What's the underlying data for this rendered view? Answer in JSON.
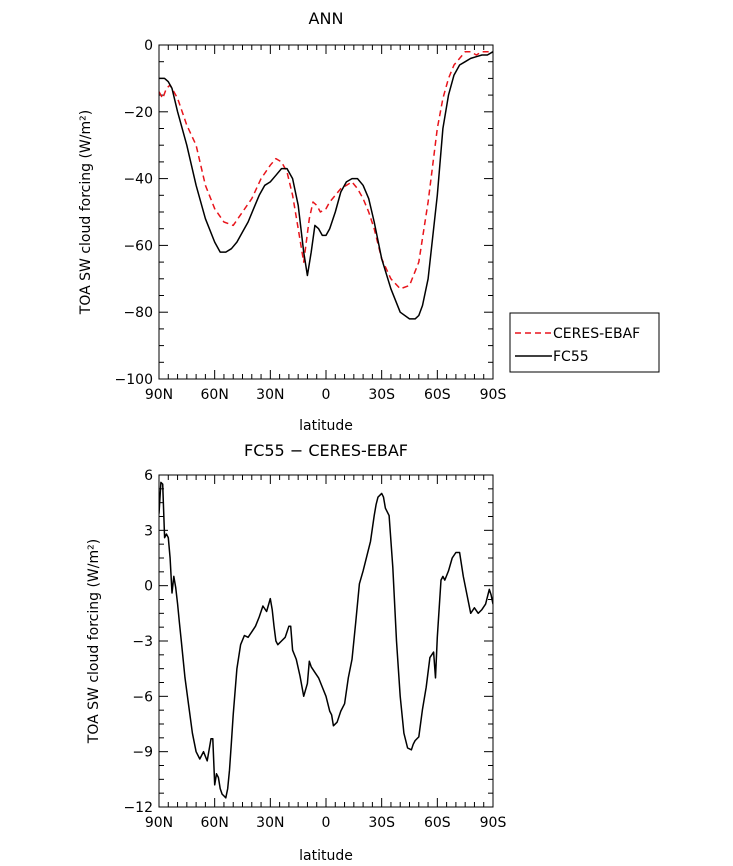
{
  "chart_data": [
    {
      "type": "line",
      "title": "ANN",
      "xlabel": "latitude",
      "ylabel": "TOA SW cloud forcing (W/m²)",
      "xlim": [
        90,
        -90
      ],
      "ylim": [
        -100,
        0
      ],
      "x_ticks": [
        {
          "v": 90,
          "label": "90N"
        },
        {
          "v": 60,
          "label": "60N"
        },
        {
          "v": 30,
          "label": "30N"
        },
        {
          "v": 0,
          "label": "0"
        },
        {
          "v": -30,
          "label": "30S"
        },
        {
          "v": -60,
          "label": "60S"
        },
        {
          "v": -90,
          "label": "90S"
        }
      ],
      "y_ticks": [
        {
          "v": 0,
          "label": "0"
        },
        {
          "v": -20,
          "label": "−20"
        },
        {
          "v": -40,
          "label": "−40"
        },
        {
          "v": -60,
          "label": "−60"
        },
        {
          "v": -80,
          "label": "−80"
        },
        {
          "v": -100,
          "label": "−100"
        }
      ],
      "legend": {
        "placement": "right"
      },
      "series": [
        {
          "name": "CERES-EBAF",
          "color": "#e8141b",
          "style": "dashed",
          "x": [
            90,
            88,
            86,
            84,
            80,
            75,
            70,
            65,
            60,
            55,
            50,
            45,
            40,
            35,
            30,
            27,
            24,
            21,
            18,
            15,
            12,
            9,
            7,
            5,
            3,
            0,
            -2,
            -5,
            -8,
            -11,
            -14,
            -17,
            -20,
            -23,
            -26,
            -30,
            -35,
            -40,
            -45,
            -50,
            -55,
            -60,
            -63,
            -66,
            -69,
            -72,
            -75,
            -78,
            -81,
            -84,
            -87,
            -90
          ],
          "y": [
            -14,
            -16,
            -13,
            -12,
            -16,
            -24,
            -30,
            -42,
            -49,
            -53,
            -54,
            -50,
            -46,
            -40,
            -36,
            -34,
            -35,
            -38,
            -45,
            -55,
            -65,
            -52,
            -47,
            -48,
            -50,
            -49,
            -47,
            -45,
            -43,
            -42,
            -41,
            -43,
            -46,
            -50,
            -55,
            -64,
            -70,
            -73,
            -72,
            -65,
            -47,
            -25,
            -16,
            -10,
            -6,
            -4,
            -2,
            -2,
            -3,
            -2,
            -2,
            -2
          ]
        },
        {
          "name": "FC55",
          "color": "#000000",
          "style": "solid",
          "x": [
            90,
            87,
            85,
            83,
            80,
            75,
            70,
            65,
            60,
            57,
            54,
            51,
            48,
            45,
            42,
            39,
            36,
            33,
            30,
            27,
            24,
            21,
            18,
            15,
            12,
            10,
            8,
            6,
            4,
            2,
            0,
            -2,
            -5,
            -8,
            -11,
            -14,
            -17,
            -20,
            -23,
            -26,
            -30,
            -35,
            -40,
            -45,
            -48,
            -50,
            -52,
            -55,
            -60,
            -63,
            -66,
            -69,
            -72,
            -75,
            -78,
            -81,
            -84,
            -87,
            -90
          ],
          "y": [
            -10,
            -10,
            -11,
            -13,
            -20,
            -30,
            -42,
            -52,
            -59,
            -62,
            -62,
            -61,
            -59,
            -56,
            -53,
            -49,
            -45,
            -42,
            -41,
            -39,
            -37,
            -37,
            -40,
            -48,
            -62,
            -69,
            -62,
            -54,
            -55,
            -57,
            -57,
            -55,
            -50,
            -44,
            -41,
            -40,
            -40,
            -42,
            -46,
            -53,
            -64,
            -73,
            -80,
            -82,
            -82,
            -81,
            -78,
            -70,
            -45,
            -25,
            -15,
            -9,
            -6,
            -5,
            -4,
            -3.5,
            -3,
            -3,
            -2
          ]
        }
      ]
    },
    {
      "type": "line",
      "title": "FC55 − CERES-EBAF",
      "xlabel": "latitude",
      "ylabel": "TOA SW cloud forcing (W/m²)",
      "xlim": [
        90,
        -90
      ],
      "ylim": [
        -12,
        6
      ],
      "x_ticks": [
        {
          "v": 90,
          "label": "90N"
        },
        {
          "v": 60,
          "label": "60N"
        },
        {
          "v": 30,
          "label": "30N"
        },
        {
          "v": 0,
          "label": "0"
        },
        {
          "v": -30,
          "label": "30S"
        },
        {
          "v": -60,
          "label": "60S"
        },
        {
          "v": -90,
          "label": "90S"
        }
      ],
      "y_ticks": [
        {
          "v": 6,
          "label": "6"
        },
        {
          "v": 3,
          "label": "3"
        },
        {
          "v": 0,
          "label": "0"
        },
        {
          "v": -3,
          "label": "−3"
        },
        {
          "v": -6,
          "label": "−6"
        },
        {
          "v": -9,
          "label": "−9"
        },
        {
          "v": -12,
          "label": "−12"
        }
      ],
      "series": [
        {
          "color": "#000000",
          "style": "solid",
          "x": [
            90,
            89,
            88,
            87,
            86,
            85,
            84,
            83,
            82,
            81,
            80,
            79,
            78,
            76,
            74,
            72,
            70,
            68,
            66,
            64,
            62,
            61,
            60,
            59,
            58,
            57,
            56,
            55,
            54,
            53,
            52,
            51,
            50,
            48,
            46,
            44,
            42,
            40,
            38,
            36,
            34,
            32,
            30,
            29,
            28,
            27,
            26,
            24,
            22,
            20,
            19,
            18,
            16,
            14,
            12,
            10,
            9,
            8,
            6,
            4,
            2,
            0,
            -2,
            -3,
            -4,
            -6,
            -8,
            -10,
            -12,
            -14,
            -16,
            -18,
            -20,
            -22,
            -24,
            -26,
            -27,
            -28,
            -29,
            -30,
            -31,
            -32,
            -34,
            -36,
            -38,
            -40,
            -42,
            -44,
            -46,
            -47,
            -48,
            -50,
            -52,
            -54,
            -56,
            -58,
            -59,
            -60,
            -62,
            -63,
            -64,
            -66,
            -68,
            -70,
            -72,
            -74,
            -76,
            -78,
            -80,
            -82,
            -84,
            -86,
            -88,
            -89,
            -90
          ],
          "y": [
            3.9,
            5.6,
            5.5,
            2.6,
            2.8,
            2.6,
            1.5,
            -0.4,
            0.5,
            -0.1,
            -1.0,
            -2.0,
            -3.0,
            -5.0,
            -6.5,
            -8.0,
            -9.0,
            -9.4,
            -9.0,
            -9.5,
            -8.3,
            -8.3,
            -10.8,
            -10.2,
            -10.4,
            -11.0,
            -11.3,
            -11.4,
            -11.5,
            -11.0,
            -10.0,
            -8.5,
            -7.0,
            -4.5,
            -3.2,
            -2.7,
            -2.8,
            -2.5,
            -2.2,
            -1.7,
            -1.1,
            -1.4,
            -0.7,
            -1.3,
            -2.2,
            -3.0,
            -3.2,
            -3.0,
            -2.8,
            -2.2,
            -2.2,
            -3.5,
            -4.0,
            -4.9,
            -6.0,
            -5.3,
            -4.1,
            -4.4,
            -4.7,
            -5.0,
            -5.5,
            -6.0,
            -6.8,
            -7.0,
            -7.6,
            -7.4,
            -6.8,
            -6.4,
            -5.0,
            -4.0,
            -2.0,
            0.1,
            0.8,
            1.6,
            2.4,
            3.8,
            4.4,
            4.8,
            4.9,
            5.0,
            4.8,
            4.2,
            3.8,
            1.0,
            -3.0,
            -6.0,
            -8.0,
            -8.8,
            -8.9,
            -8.6,
            -8.4,
            -8.2,
            -6.7,
            -5.5,
            -3.9,
            -3.6,
            -5.0,
            -2.8,
            0.3,
            0.5,
            0.3,
            0.8,
            1.5,
            1.8,
            1.8,
            0.5,
            -0.5,
            -1.5,
            -1.2,
            -1.5,
            -1.3,
            -1.0,
            -0.2,
            -0.5,
            -1.0
          ]
        }
      ]
    }
  ]
}
